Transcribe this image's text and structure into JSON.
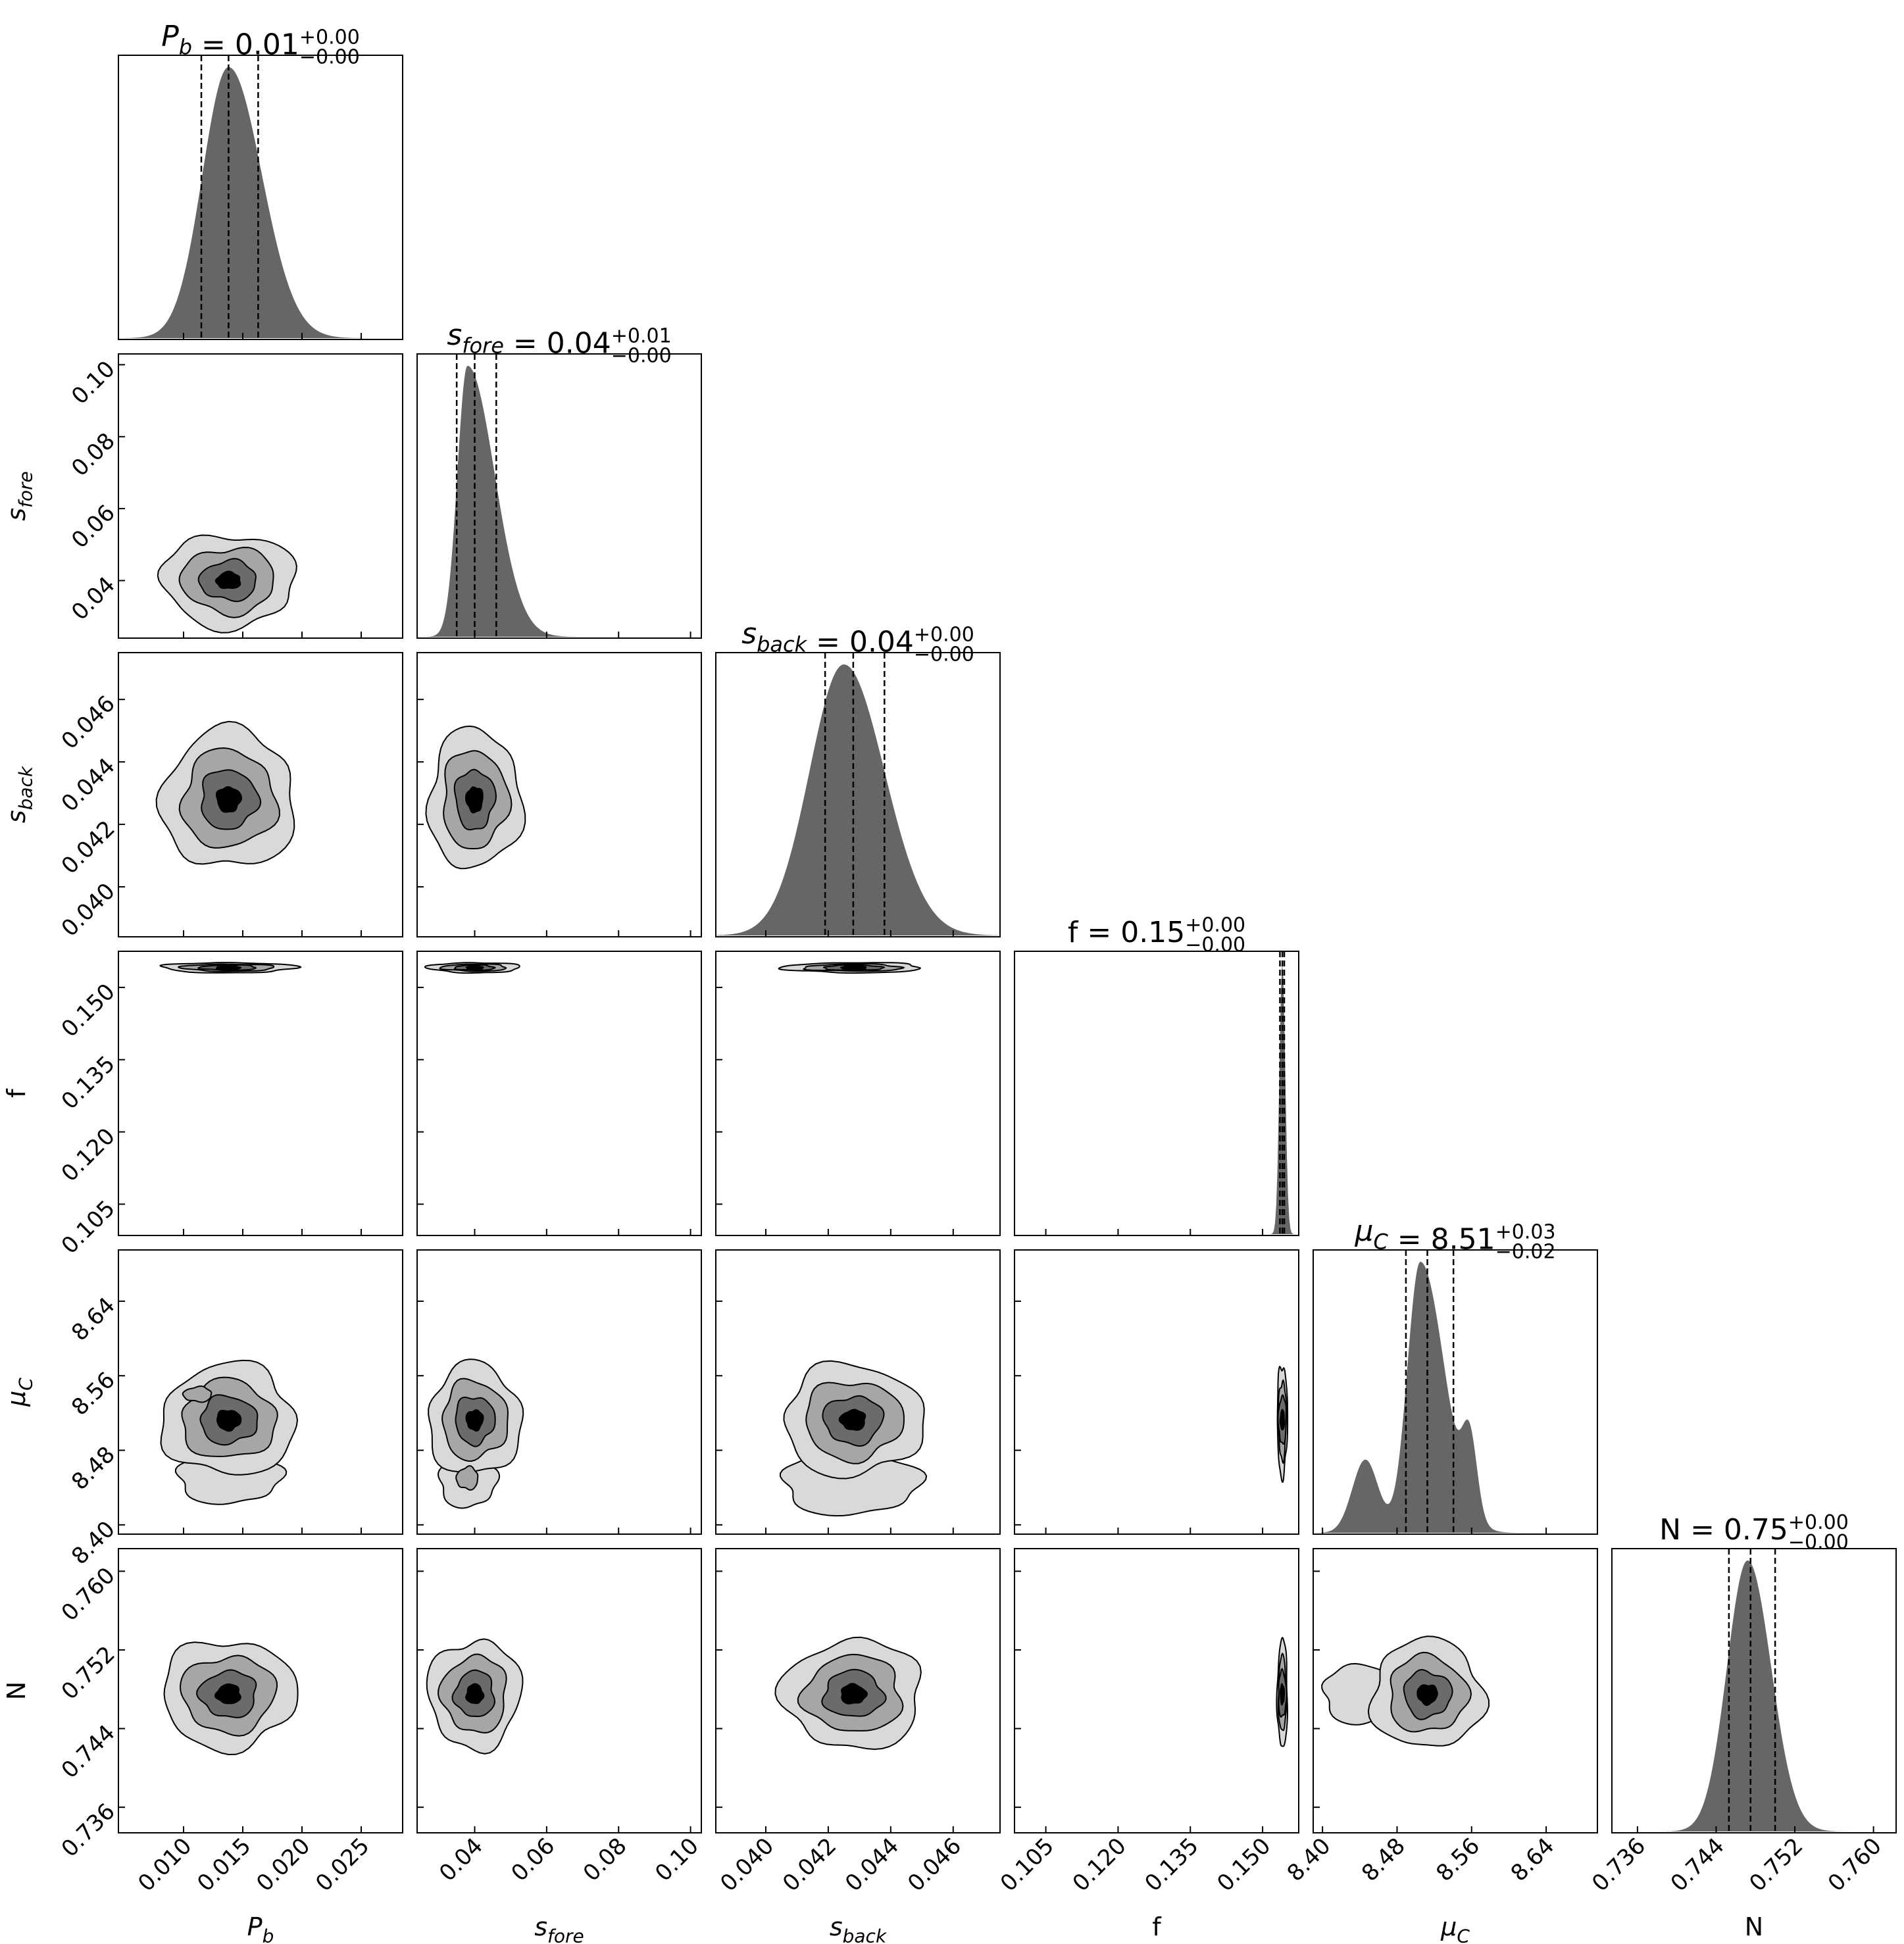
{
  "chart_data": {
    "type": "corner",
    "parameters": [
      {
        "key": "Pb",
        "symbol": "P",
        "sub": "b",
        "italic": true,
        "title_value": "0.01",
        "err_plus": "+0.00",
        "err_minus": "−0.00",
        "range": [
          0.0045,
          0.0285
        ],
        "ticks": [
          0.01,
          0.015,
          0.02,
          0.025
        ],
        "tick_labels": [
          "0.010",
          "0.015",
          "0.020",
          "0.025"
        ],
        "quantiles": [
          0.0115,
          0.0138,
          0.0163
        ],
        "peak": 0.0138,
        "sigma_left": 0.0022,
        "sigma_right": 0.0028,
        "extra_peaks": []
      },
      {
        "key": "sfore",
        "symbol": "s",
        "sub": "fore",
        "italic": true,
        "title_value": "0.04",
        "err_plus": "+0.01",
        "err_minus": "−0.00",
        "range": [
          0.024,
          0.103
        ],
        "ticks": [
          0.04,
          0.06,
          0.08,
          0.1
        ],
        "tick_labels": [
          "0.04",
          "0.06",
          "0.08",
          "0.10"
        ],
        "quantiles": [
          0.035,
          0.04,
          0.046
        ],
        "peak": 0.038,
        "sigma_left": 0.0028,
        "sigma_right": 0.0075,
        "extra_peaks": []
      },
      {
        "key": "sback",
        "symbol": "s",
        "sub": "back",
        "italic": true,
        "title_value": "0.04",
        "err_plus": "+0.00",
        "err_minus": "−0.00",
        "range": [
          0.0384,
          0.0475
        ],
        "ticks": [
          0.04,
          0.042,
          0.044,
          0.046
        ],
        "tick_labels": [
          "0.040",
          "0.042",
          "0.044",
          "0.046"
        ],
        "quantiles": [
          0.0419,
          0.0428,
          0.0438
        ],
        "peak": 0.0425,
        "sigma_left": 0.0011,
        "sigma_right": 0.0013,
        "extra_peaks": []
      },
      {
        "key": "f",
        "symbol": "f",
        "sub": "",
        "italic": false,
        "title_value": "0.15",
        "err_plus": "+0.00",
        "err_minus": "−0.00",
        "range": [
          0.0985,
          0.1575
        ],
        "ticks": [
          0.105,
          0.12,
          0.135,
          0.15
        ],
        "tick_labels": [
          "0.105",
          "0.120",
          "0.135",
          "0.150"
        ],
        "quantiles": [
          0.1536,
          0.1541,
          0.1545
        ],
        "peak": 0.1541,
        "sigma_left": 0.0006,
        "sigma_right": 0.0006,
        "extra_peaks": []
      },
      {
        "key": "muC",
        "symbol": "μ",
        "sub": "C",
        "italic": true,
        "title_value": "8.51",
        "err_plus": "+0.03",
        "err_minus": "−0.02",
        "range": [
          8.39,
          8.695
        ],
        "ticks": [
          8.4,
          8.48,
          8.56,
          8.64
        ],
        "tick_labels": [
          "8.40",
          "8.48",
          "8.56",
          "8.64"
        ],
        "quantiles": [
          8.4895,
          8.5125,
          8.5405
        ],
        "peak": 8.505,
        "sigma_left": 0.014,
        "sigma_right": 0.026,
        "extra_peaks": [
          {
            "x": 8.446,
            "amp": 0.27,
            "sigma": 0.014
          },
          {
            "x": 8.558,
            "amp": 0.28,
            "sigma": 0.008
          }
        ]
      },
      {
        "key": "N",
        "symbol": "N",
        "sub": "",
        "italic": false,
        "title_value": "0.75",
        "err_plus": "+0.00",
        "err_minus": "−0.00",
        "range": [
          0.7334,
          0.7623
        ],
        "ticks": [
          0.736,
          0.744,
          0.752,
          0.76
        ],
        "tick_labels": [
          "0.736",
          "0.744",
          "0.752",
          "0.760"
        ],
        "quantiles": [
          0.7453,
          0.7475,
          0.75
        ],
        "peak": 0.7472,
        "sigma_left": 0.0021,
        "sigma_right": 0.0024,
        "extra_peaks": []
      }
    ],
    "contour_levels": 4,
    "fill_color": "#666666",
    "contour_fills": [
      "#d9d9d9",
      "#a6a6a6",
      "#6b6b6b",
      "#000000"
    ],
    "secondary_blobs": [
      {
        "row": "muC",
        "col": "Pb",
        "x": 0.0112,
        "y": 8.54,
        "sx": 0.0006,
        "sy": 0.004,
        "level": 1
      },
      {
        "row": "muC",
        "col": "Pb",
        "x": 0.0138,
        "y": 8.451,
        "sx": 0.0022,
        "sy": 0.014,
        "level": 0
      },
      {
        "row": "muC",
        "col": "sfore",
        "x": 0.038,
        "y": 8.447,
        "sx": 0.004,
        "sy": 0.014,
        "level": 0
      },
      {
        "row": "muC",
        "col": "sfore",
        "x": 0.038,
        "y": 8.45,
        "sx": 0.0015,
        "sy": 0.006,
        "level": 1
      },
      {
        "row": "muC",
        "col": "sback",
        "x": 0.0427,
        "y": 8.445,
        "sx": 0.0011,
        "sy": 0.017,
        "level": 0
      },
      {
        "row": "N",
        "col": "muC",
        "x": 8.444,
        "y": 0.7475,
        "sx": 0.022,
        "sy": 0.0015,
        "level": 0
      }
    ]
  }
}
